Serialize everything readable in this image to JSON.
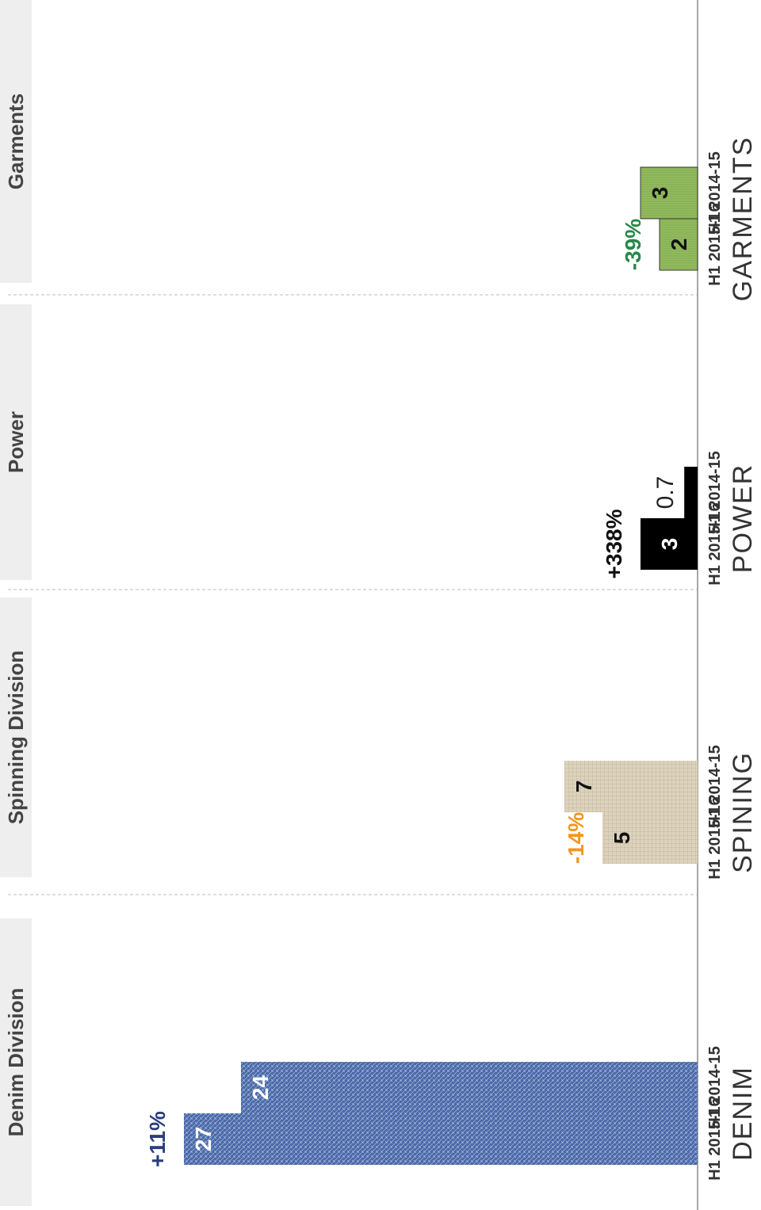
{
  "headers": [
    "Denim Division",
    "Spinning Division",
    "Power",
    "Garments"
  ],
  "chart_data": {
    "type": "bar",
    "groups": [
      {
        "name": "DENIM",
        "bars": [
          {
            "period": "H1 2015-16",
            "value": 27,
            "label": "27"
          },
          {
            "period": "H1 2014-15",
            "value": 24,
            "label": "24"
          }
        ],
        "change": "+11%"
      },
      {
        "name": "SPINING",
        "bars": [
          {
            "period": "H1 2015-16",
            "value": 5,
            "label": "5"
          },
          {
            "period": "H1 2014-15",
            "value": 7,
            "label": "7"
          }
        ],
        "change": "-14%"
      },
      {
        "name": "POWER",
        "bars": [
          {
            "period": "H1 2015-16",
            "value": 3,
            "label": "3"
          },
          {
            "period": "H1 2014-15",
            "value": 0.7,
            "label": "0.7"
          }
        ],
        "change": "+338%"
      },
      {
        "name": "GARMENTS",
        "bars": [
          {
            "period": "H1 2015-16",
            "value": 2,
            "label": "2"
          },
          {
            "period": "H1 2014-15",
            "value": 3,
            "label": "3"
          }
        ],
        "change": "-39%"
      }
    ]
  },
  "colors": {
    "denim": "#4a6aaa",
    "spinning": "#ddd3bd",
    "power": "#000000",
    "garments": "#93bb5f",
    "change_denim": "#2a3d7c",
    "change_spinning": "#f0961e",
    "change_power": "#111111",
    "change_garments": "#27884a"
  }
}
